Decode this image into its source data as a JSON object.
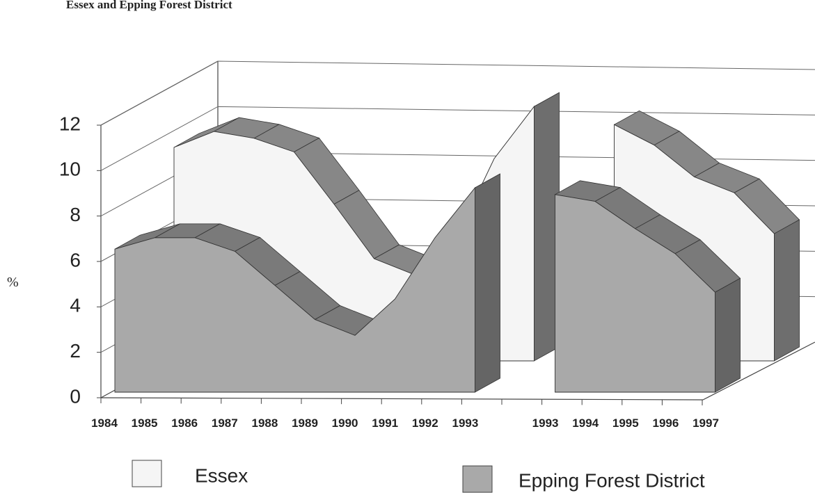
{
  "chart_data": {
    "type": "area3d",
    "title": "Essex and Epping Forest District",
    "ylabel": "%",
    "categories": [
      "1984",
      "1985",
      "1986",
      "1987",
      "1988",
      "1989",
      "1990",
      "1991",
      "1992",
      "1993",
      null,
      "1993",
      "1994",
      "1995",
      "1996",
      "1997"
    ],
    "series": [
      {
        "name": "Essex",
        "color": "#f5f5f5",
        "values": [
          9.4,
          10.1,
          9.8,
          9.2,
          6.9,
          4.5,
          3.8,
          5.2,
          8.9,
          11.2,
          null,
          10.4,
          9.5,
          8.1,
          7.4,
          5.6
        ]
      },
      {
        "name": "Epping Forest District",
        "color": "#a9a9a9",
        "values": [
          6.3,
          6.8,
          6.8,
          6.2,
          4.7,
          3.2,
          2.5,
          4.1,
          6.8,
          9.0,
          null,
          8.7,
          8.4,
          7.2,
          6.1,
          4.4
        ]
      }
    ],
    "ylim": [
      0,
      12
    ],
    "yticks": [
      0,
      2,
      4,
      6,
      8,
      10,
      12
    ],
    "grid": true
  }
}
